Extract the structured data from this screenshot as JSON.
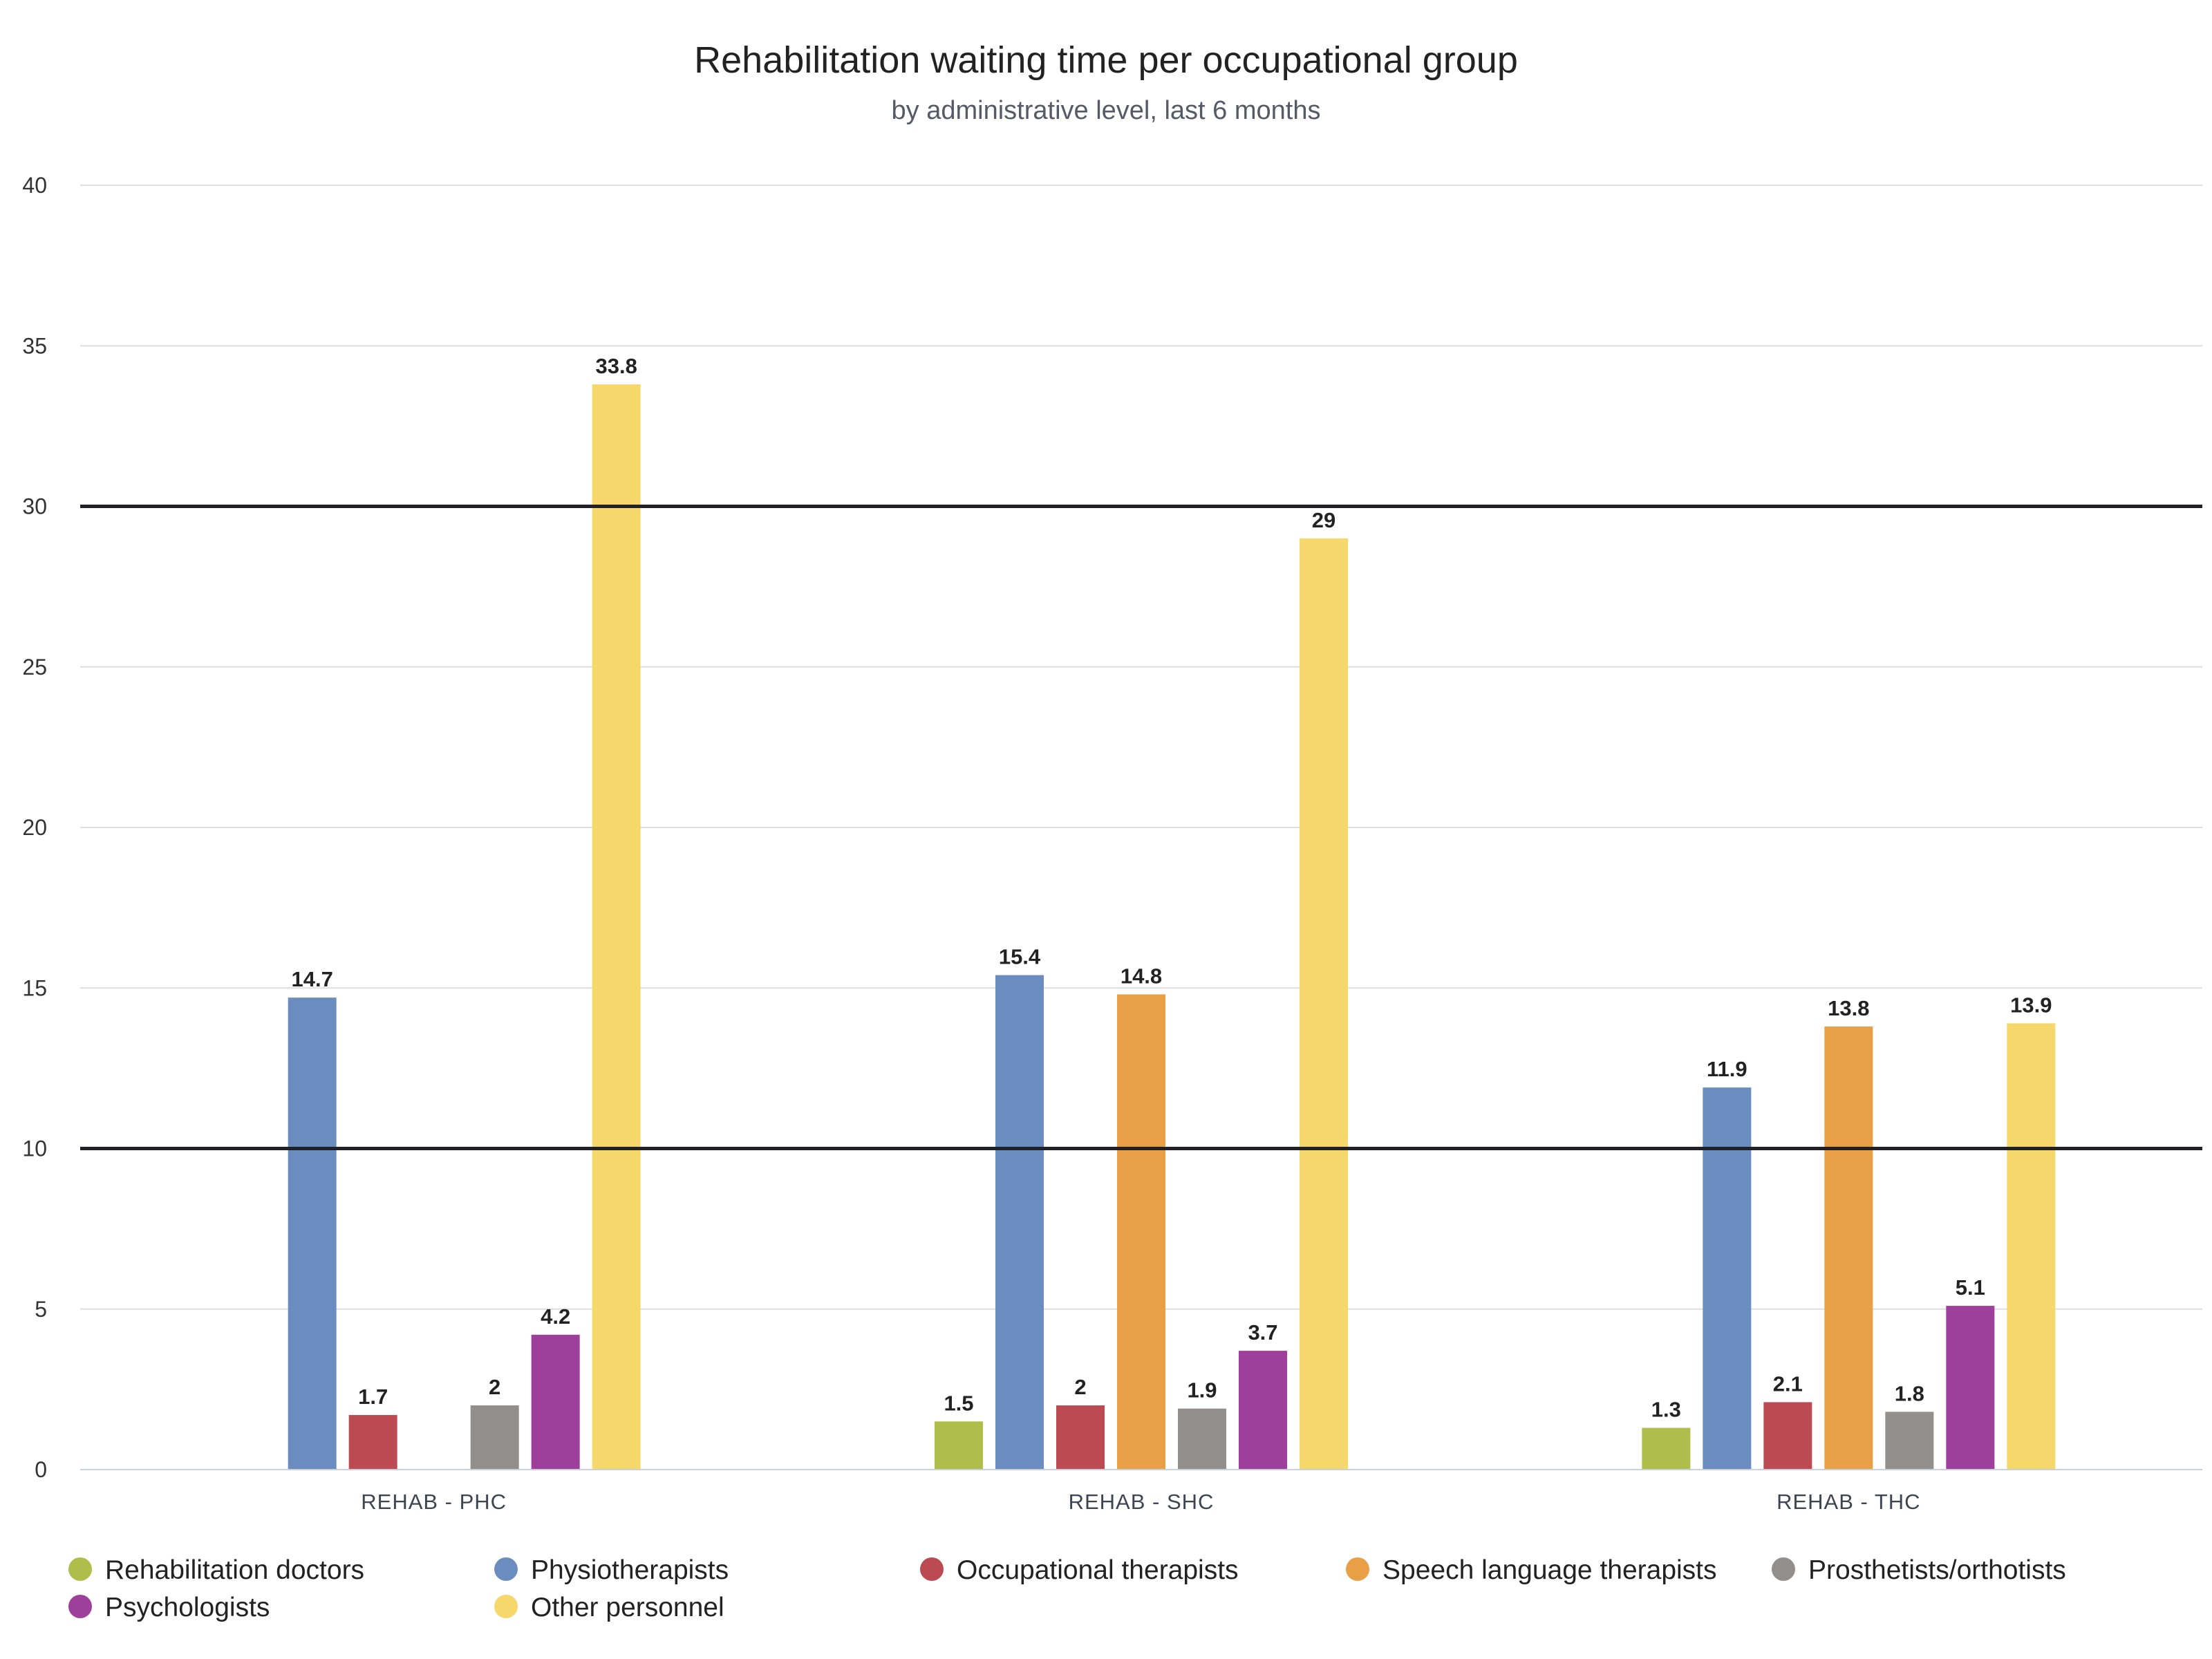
{
  "chart_data": {
    "type": "bar",
    "title": "Rehabilitation waiting time per occupational group",
    "subtitle": "by administrative level, last 6 months",
    "categories": [
      "REHAB - PHC",
      "REHAB - SHC",
      "REHAB - THC"
    ],
    "ylim": [
      0,
      40
    ],
    "yticks": [
      0,
      5,
      10,
      15,
      20,
      25,
      30,
      35,
      40
    ],
    "reference_lines": [
      10,
      30
    ],
    "grid": true,
    "legend_position": "bottom",
    "series": [
      {
        "name": "Rehabilitation doctors",
        "color": "#afbd4b",
        "values": [
          null,
          1.5,
          1.3
        ]
      },
      {
        "name": "Physiotherapists",
        "color": "#6b8cbf",
        "values": [
          14.7,
          15.4,
          11.9
        ]
      },
      {
        "name": "Occupational therapists",
        "color": "#bc4a52",
        "values": [
          1.7,
          2,
          2.1
        ]
      },
      {
        "name": "Speech language therapists",
        "color": "#e99f46",
        "values": [
          null,
          14.8,
          13.8
        ]
      },
      {
        "name": "Prosthetists/orthotists",
        "color": "#918e8b",
        "values": [
          2,
          1.9,
          1.8
        ]
      },
      {
        "name": "Psychologists",
        "color": "#9f3f9c",
        "values": [
          4.2,
          3.7,
          5.1
        ]
      },
      {
        "name": "Other personnel",
        "color": "#f5d76c",
        "values": [
          33.8,
          29,
          13.9
        ]
      }
    ]
  }
}
